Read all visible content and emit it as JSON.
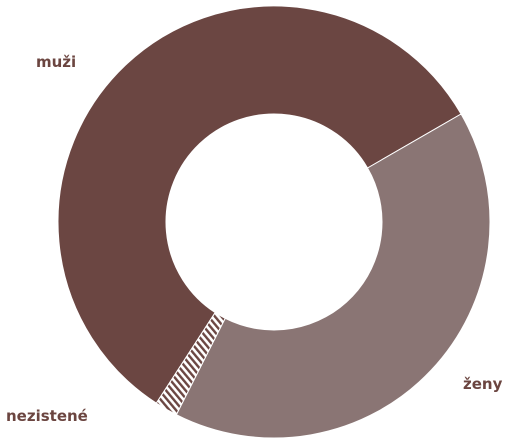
{
  "chart_data": {
    "type": "pie",
    "style": "donut",
    "title": "",
    "slices": [
      {
        "label": "muži",
        "value": 57.5,
        "color": "#6b4642",
        "pattern": "solid"
      },
      {
        "label": "ženy",
        "value": 40.8,
        "color": "#8a7574",
        "pattern": "solid"
      },
      {
        "label": "nezistené",
        "value": 1.7,
        "color": "#6b4642",
        "pattern": "diagonal-hatch"
      }
    ],
    "legend": "none",
    "labels_position": "outside"
  }
}
